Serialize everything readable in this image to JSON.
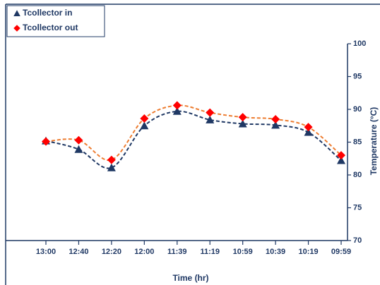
{
  "chart_data": {
    "type": "line",
    "x_label": "Time (hr)",
    "y_label": "Temperature (°C)",
    "categories": [
      "13:00",
      "12:40",
      "12:20",
      "12:00",
      "11:39",
      "11:19",
      "10:59",
      "10:39",
      "10:19",
      "09:59"
    ],
    "series": [
      {
        "name": "Tcollector in",
        "color": "#1f3864",
        "marker": "triangle",
        "line_color": "#1f3864",
        "values": [
          85.2,
          83.9,
          81.1,
          87.5,
          89.7,
          88.4,
          87.8,
          87.6,
          86.5,
          82.2
        ]
      },
      {
        "name": "Tcollector out",
        "color": "#ff0000",
        "marker": "diamond",
        "line_color": "#ed7d31",
        "values": [
          85.1,
          85.3,
          82.3,
          88.6,
          90.6,
          89.5,
          88.8,
          88.5,
          87.3,
          83.0
        ]
      }
    ],
    "ylim": [
      70,
      100
    ],
    "yticks": [
      70,
      75,
      80,
      85,
      90,
      95,
      100
    ],
    "y_axis_side": "right",
    "legend": "upper left",
    "grid": false
  }
}
